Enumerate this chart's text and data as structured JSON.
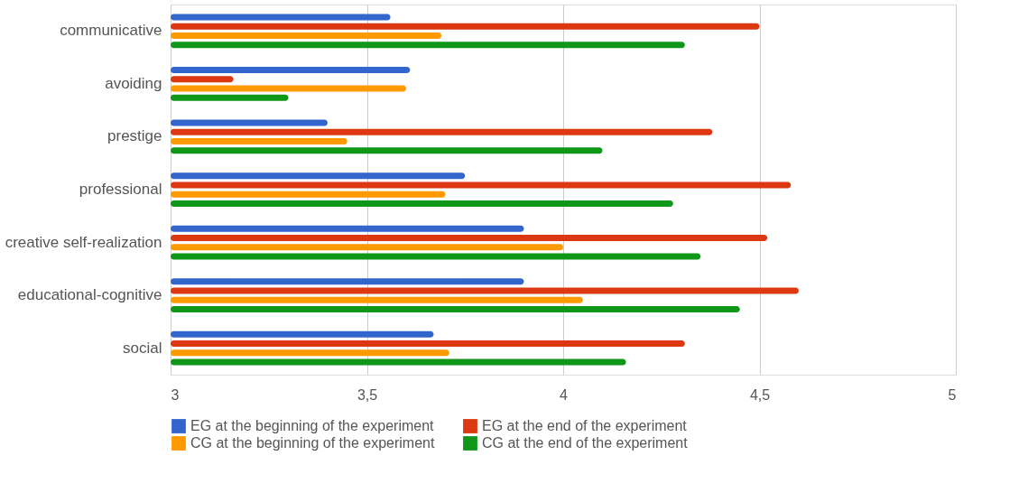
{
  "chart_data": {
    "type": "bar",
    "orientation": "horizontal",
    "categories": [
      "communicative",
      "avoiding",
      "prestige",
      "professional",
      "creative self-realization",
      "educational-cognitive",
      "social"
    ],
    "series": [
      {
        "name": "EG at the beginning of the experiment",
        "color": "#3366cc",
        "values": [
          3.56,
          3.61,
          3.4,
          3.75,
          3.9,
          3.9,
          3.67
        ]
      },
      {
        "name": "EG at the end of the experiment",
        "color": "#dc3912",
        "values": [
          4.5,
          3.16,
          4.38,
          4.58,
          4.52,
          4.6,
          4.31
        ]
      },
      {
        "name": "CG at the beginning of the experiment",
        "color": "#ff9900",
        "values": [
          3.69,
          3.6,
          3.45,
          3.7,
          4.0,
          4.05,
          3.71
        ]
      },
      {
        "name": "CG at the end of the experiment",
        "color": "#109618",
        "values": [
          4.31,
          3.3,
          4.1,
          4.28,
          4.35,
          4.45,
          4.16
        ]
      }
    ],
    "xlim": [
      3,
      5
    ],
    "xticks": [
      3,
      {
        "value": 3.5,
        "label": "3,5"
      },
      4,
      {
        "value": 4.5,
        "label": "4,5"
      },
      5
    ],
    "grid": "x",
    "legend": "bottom"
  }
}
